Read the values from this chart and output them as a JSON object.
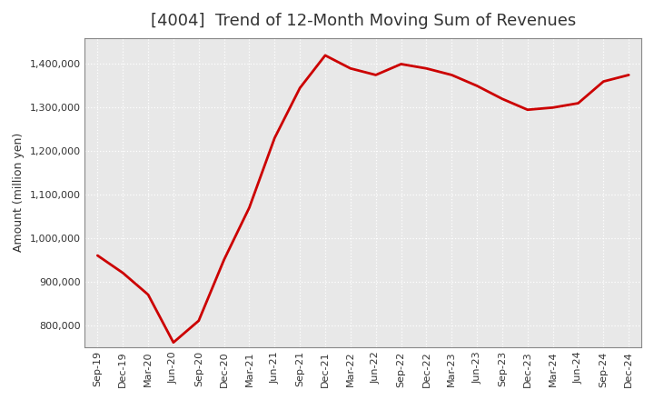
{
  "title": "[4004]  Trend of 12-Month Moving Sum of Revenues",
  "ylabel": "Amount (million yen)",
  "line_color": "#cc0000",
  "line_width": 2.0,
  "background_color": "#ffffff",
  "plot_bg_color": "#e8e8e8",
  "grid_color": "#ffffff",
  "ylim": [
    750000,
    1460000
  ],
  "yticks": [
    800000,
    900000,
    1000000,
    1100000,
    1200000,
    1300000,
    1400000
  ],
  "x_labels": [
    "Sep-19",
    "Dec-19",
    "Mar-20",
    "Jun-20",
    "Sep-20",
    "Dec-20",
    "Mar-21",
    "Jun-21",
    "Sep-21",
    "Dec-21",
    "Mar-22",
    "Jun-22",
    "Sep-22",
    "Dec-22",
    "Mar-23",
    "Jun-23",
    "Sep-23",
    "Dec-23",
    "Mar-24",
    "Jun-24",
    "Sep-24",
    "Dec-24"
  ],
  "values": [
    960000,
    920000,
    870000,
    760000,
    810000,
    950000,
    1070000,
    1230000,
    1345000,
    1420000,
    1390000,
    1375000,
    1400000,
    1390000,
    1375000,
    1350000,
    1320000,
    1295000,
    1300000,
    1310000,
    1360000,
    1375000
  ],
  "title_fontsize": 13,
  "tick_fontsize": 8,
  "ylabel_fontsize": 9
}
